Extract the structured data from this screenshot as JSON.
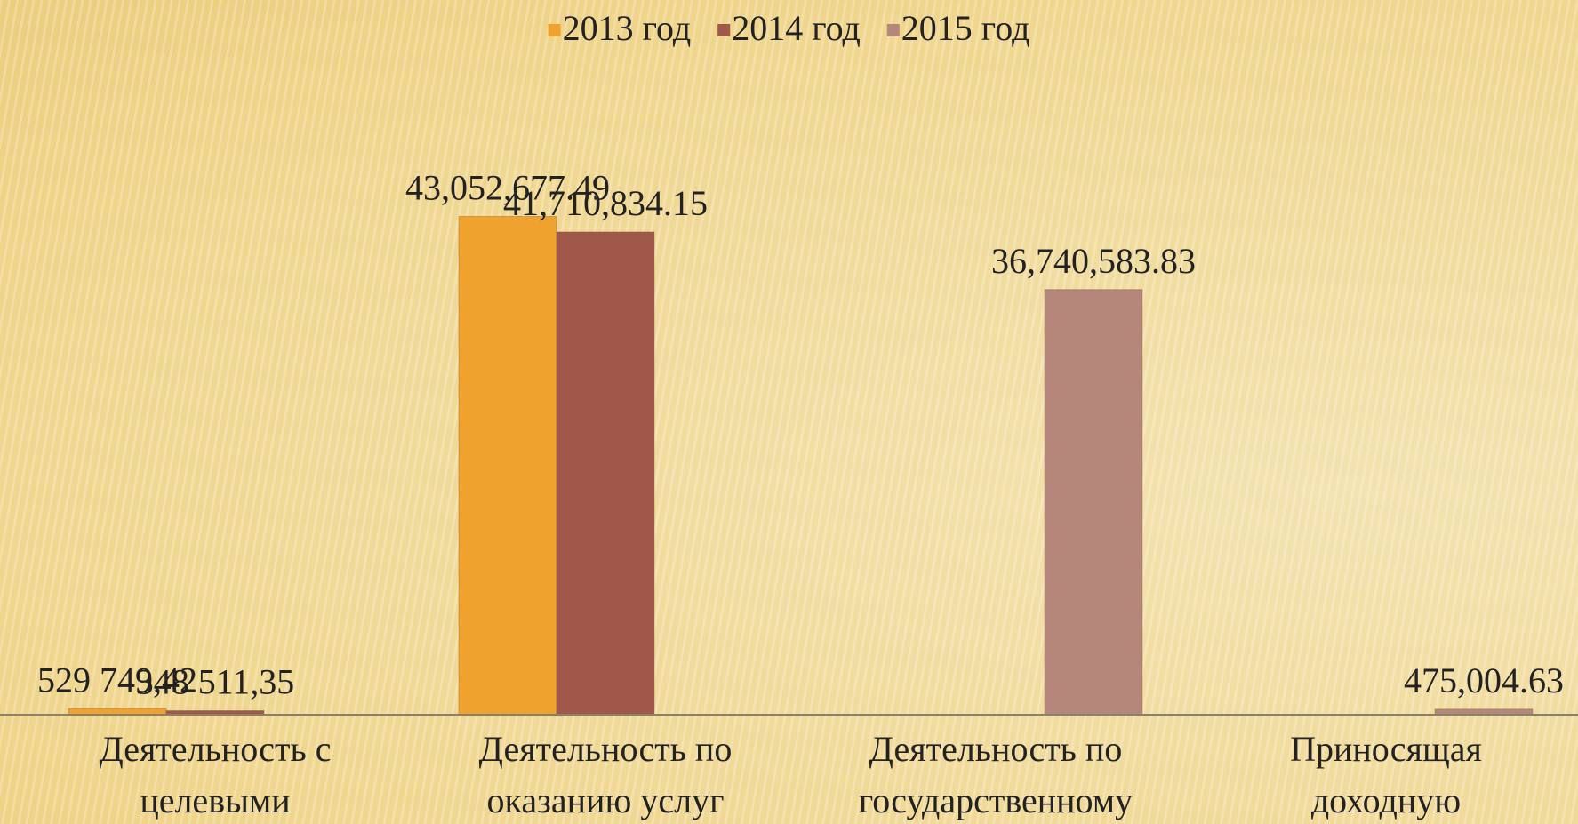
{
  "chart_data": {
    "type": "bar",
    "categories": [
      "Деятельность с\nцелевыми",
      "Деятельность по\nоказанию услуг",
      "Деятельность по\nгосударственному",
      "Приносящая\nдоходную"
    ],
    "series": [
      {
        "name": "2013 год",
        "color": "#f0a22e",
        "values": [
          529749.42,
          43052677.49,
          null,
          null
        ],
        "value_labels": [
          "529 749,42",
          "43,052,677.49",
          null,
          null
        ]
      },
      {
        "name": "2014 год",
        "color": "#a0584a",
        "values": [
          348511.35,
          41710834.15,
          null,
          null
        ],
        "value_labels": [
          "348 511,35",
          "41,710,834.15",
          null,
          null
        ]
      },
      {
        "name": "2015 год",
        "color": "#b5877a",
        "values": [
          null,
          null,
          36740583.83,
          475004.63
        ],
        "value_labels": [
          null,
          null,
          "36,740,583.83",
          "475,004.63"
        ]
      }
    ],
    "ylim": [
      0,
      50000000
    ],
    "legend": "top"
  }
}
